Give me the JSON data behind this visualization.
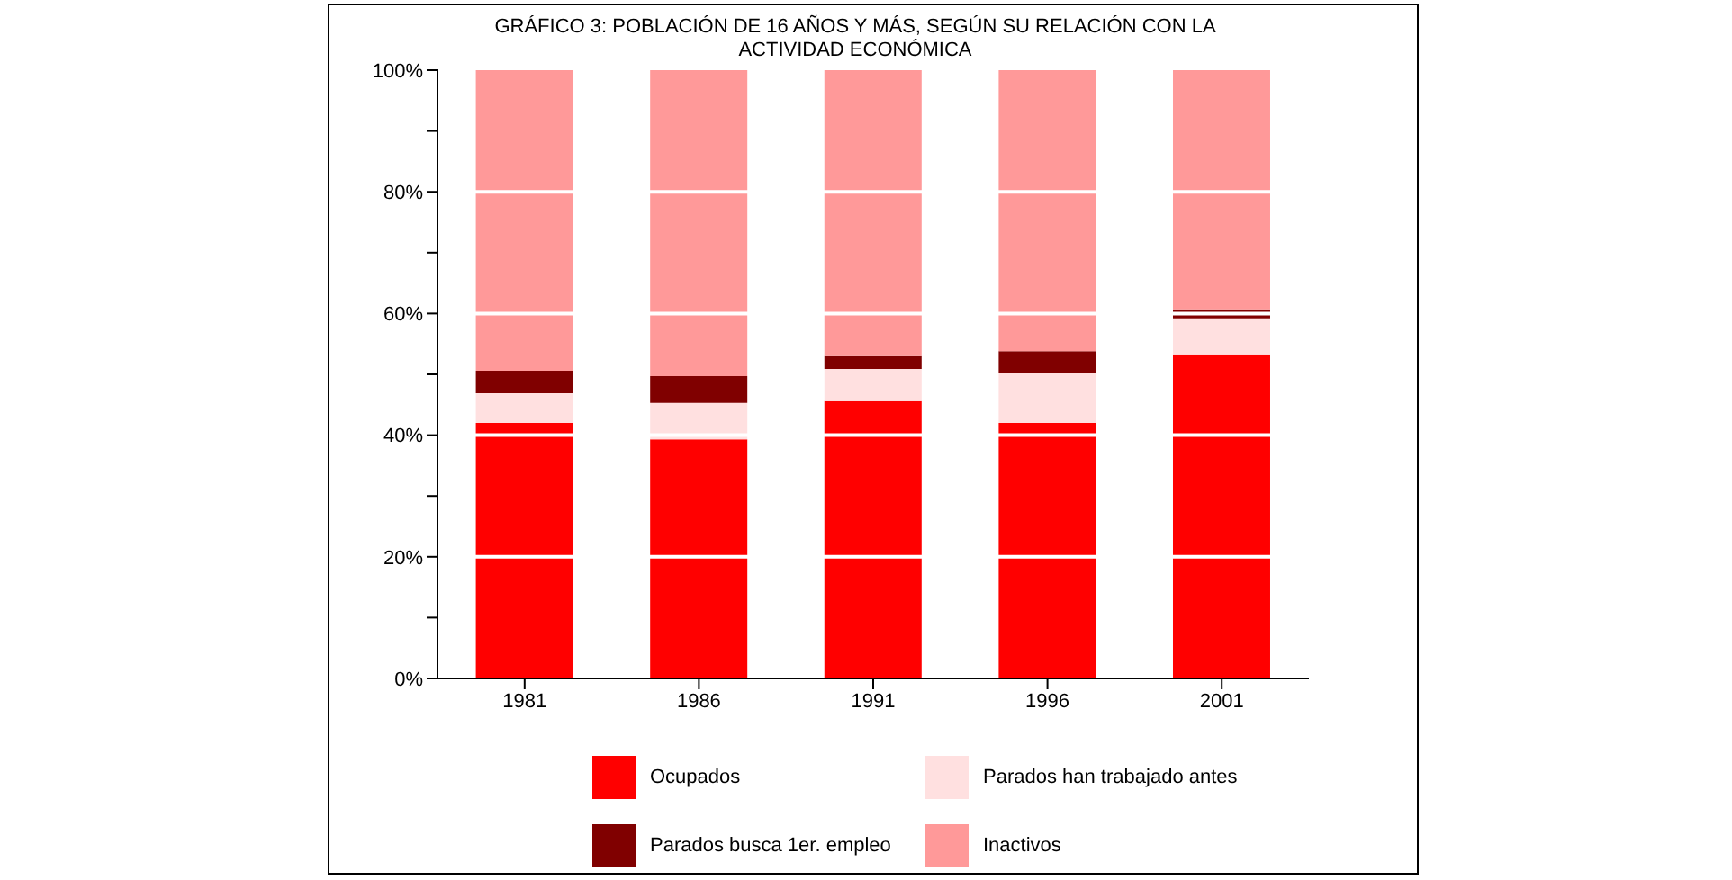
{
  "chart_data": {
    "type": "bar",
    "stacked": true,
    "title": "GRÁFICO 3: POBLACIÓN DE 16 AÑOS Y MÁS, SEGÚN SU RELACIÓN CON LA ACTIVIDAD ECONÓMICA",
    "categories": [
      "1981",
      "1986",
      "1991",
      "1996",
      "2001"
    ],
    "series": [
      {
        "name": "Ocupados",
        "color": "#ff0000",
        "values": [
          42.0,
          39.3,
          45.6,
          42.0,
          53.3
        ]
      },
      {
        "name": "Parados han trabajado antes",
        "color": "#ffe0e0",
        "values": [
          4.9,
          6.0,
          5.3,
          8.3,
          5.9
        ]
      },
      {
        "name": "Parados busca 1er. empleo",
        "color": "#800000",
        "values": [
          3.7,
          4.4,
          2.1,
          3.5,
          1.5
        ]
      },
      {
        "name": "Inactivos",
        "color": "#ff9999",
        "values": [
          49.4,
          50.3,
          47.0,
          46.2,
          39.3
        ]
      }
    ],
    "ylim": [
      0,
      100
    ],
    "yticks": [
      {
        "value": 0,
        "label": "0%"
      },
      {
        "value": 10,
        "label": null
      },
      {
        "value": 20,
        "label": "20%"
      },
      {
        "value": 30,
        "label": null
      },
      {
        "value": 40,
        "label": "40%"
      },
      {
        "value": 50,
        "label": null
      },
      {
        "value": 60,
        "label": "60%"
      },
      {
        "value": 70,
        "label": null
      },
      {
        "value": 80,
        "label": "80%"
      },
      {
        "value": 90,
        "label": null
      },
      {
        "value": 100,
        "label": "100%"
      }
    ],
    "grid": "y",
    "legend": "bottom"
  }
}
